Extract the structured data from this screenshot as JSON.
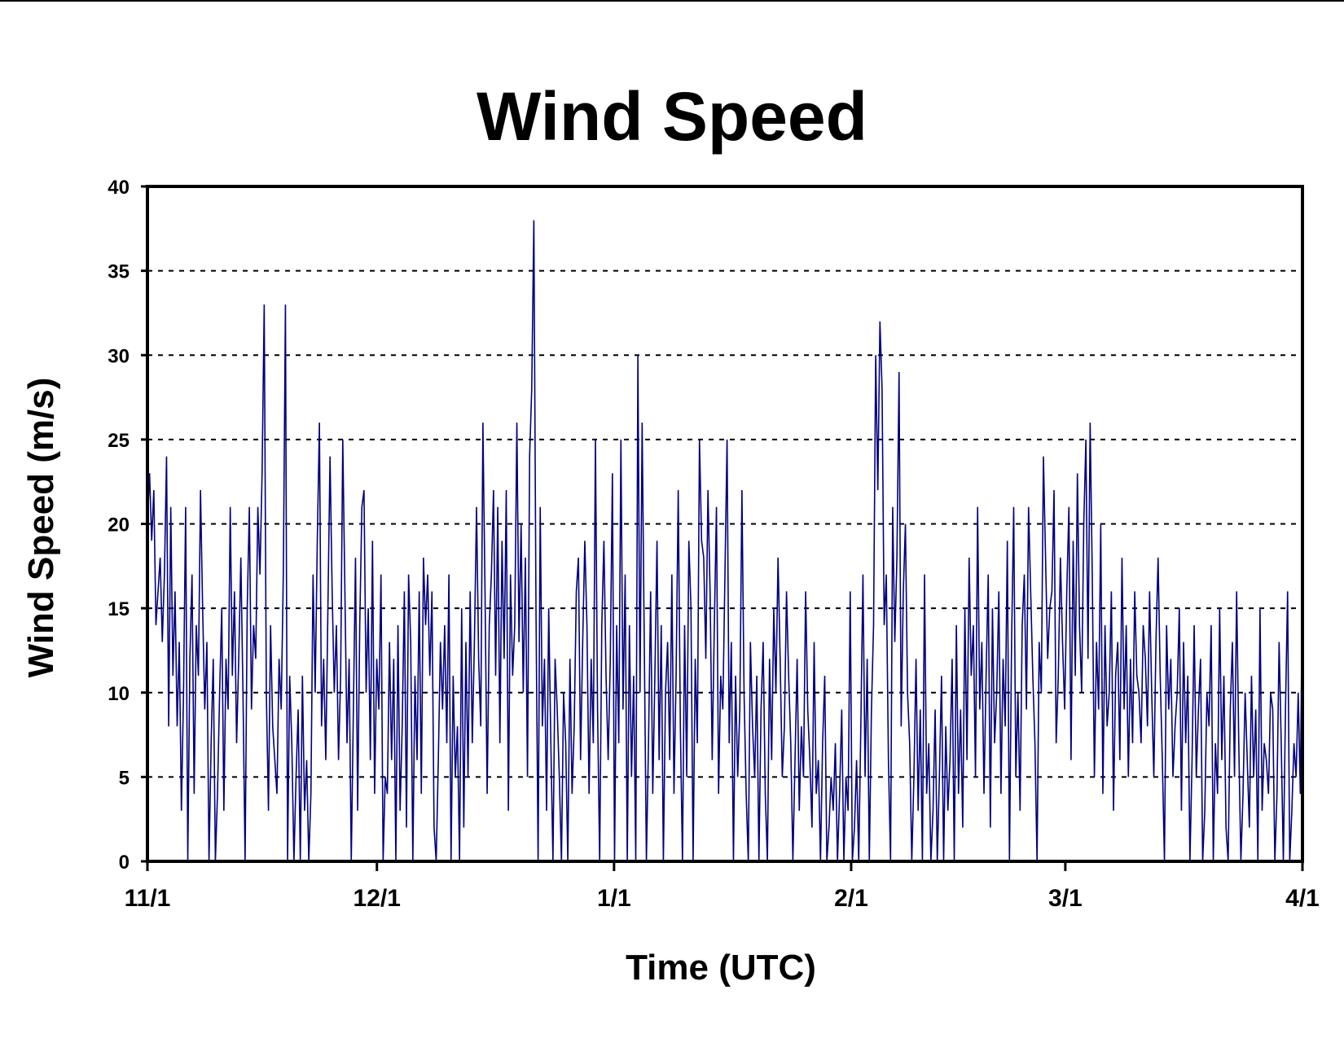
{
  "chart_data": {
    "type": "line",
    "title": "Wind Speed",
    "xlabel": "Time (UTC)",
    "ylabel": "Wind Speed (m/s)",
    "ylim": [
      0,
      40
    ],
    "yticks": [
      0,
      5,
      10,
      15,
      20,
      25,
      30,
      35,
      40
    ],
    "xlim": [
      "11/1",
      "4/1"
    ],
    "xticks": [
      "11/1",
      "12/1",
      "1/1",
      "2/1",
      "3/1",
      "4/1"
    ],
    "grid": "horizontal dashed",
    "legend": "none",
    "color": "#000080",
    "series": [
      {
        "x_start": "11/1",
        "x_end": "4/1",
        "values": [
          20,
          23,
          19,
          22,
          14,
          16,
          18,
          13,
          17,
          24,
          8,
          21,
          11,
          16,
          8,
          13,
          3,
          10,
          21,
          0,
          12,
          17,
          4,
          14,
          11,
          22,
          15,
          9,
          13,
          0,
          7,
          12,
          0,
          4,
          10,
          15,
          3,
          12,
          9,
          21,
          11,
          16,
          7,
          12,
          18,
          10,
          0,
          15,
          21,
          9,
          14,
          12,
          21,
          17,
          23,
          33,
          10,
          3,
          14,
          8,
          6,
          4,
          12,
          9,
          17,
          33,
          0,
          11,
          7,
          0,
          5,
          9,
          0,
          11,
          3,
          6,
          0,
          4,
          17,
          10,
          19,
          26,
          8,
          12,
          6,
          15,
          24,
          16,
          10,
          14,
          6,
          11,
          25,
          16,
          7,
          12,
          0,
          9,
          18,
          3,
          14,
          21,
          22,
          10,
          15,
          6,
          19,
          4,
          12,
          9,
          17,
          0,
          5,
          4,
          13,
          6,
          12,
          0,
          14,
          3,
          8,
          16,
          2,
          17,
          13,
          0,
          11,
          6,
          16,
          4,
          18,
          14,
          17,
          11,
          16,
          2,
          0,
          6,
          13,
          9,
          14,
          7,
          17,
          0,
          11,
          5,
          8,
          0,
          15,
          2,
          13,
          5,
          16,
          7,
          13,
          21,
          12,
          8,
          26,
          16,
          4,
          14,
          17,
          22,
          11,
          21,
          7,
          19,
          12,
          22,
          3,
          17,
          11,
          14,
          26,
          13,
          20,
          10,
          18,
          5,
          24,
          28,
          38,
          15,
          0,
          21,
          8,
          12,
          3,
          15,
          7,
          0,
          12,
          9,
          5,
          0,
          10,
          7,
          0,
          12,
          4,
          8,
          16,
          18,
          6,
          13,
          19,
          14,
          4,
          12,
          7,
          25,
          9,
          0,
          14,
          19,
          11,
          6,
          12,
          23,
          0,
          14,
          7,
          25,
          9,
          17,
          0,
          14,
          5,
          11,
          0,
          30,
          10,
          26,
          13,
          0,
          7,
          16,
          4,
          11,
          19,
          6,
          14,
          0,
          10,
          13,
          6,
          17,
          4,
          11,
          22,
          8,
          0,
          14,
          5,
          19,
          15,
          0,
          12,
          7,
          25,
          19,
          18,
          12,
          22,
          16,
          6,
          14,
          21,
          4,
          11,
          9,
          17,
          25,
          7,
          13,
          0,
          11,
          5,
          9,
          22,
          10,
          4,
          0,
          13,
          8,
          5,
          11,
          0,
          9,
          13,
          4,
          0,
          12,
          6,
          15,
          10,
          18,
          12,
          5,
          8,
          16,
          11,
          7,
          0,
          6,
          12,
          3,
          8,
          5,
          16,
          9,
          6,
          2,
          13,
          4,
          6,
          0,
          7,
          11,
          0,
          2,
          5,
          3,
          7,
          0,
          4,
          9,
          0,
          5,
          3,
          16,
          0,
          2,
          6,
          0,
          8,
          17,
          5,
          12,
          0,
          9,
          14,
          30,
          22,
          32,
          28,
          14,
          17,
          6,
          0,
          21,
          13,
          18,
          29,
          8,
          16,
          20,
          10,
          7,
          0,
          5,
          12,
          3,
          9,
          0,
          17,
          4,
          7,
          0,
          3,
          9,
          0,
          5,
          11,
          0,
          8,
          3,
          6,
          12,
          0,
          14,
          4,
          9,
          2,
          15,
          6,
          18,
          11,
          14,
          5,
          21,
          9,
          13,
          4,
          11,
          17,
          2,
          15,
          7,
          10,
          16,
          4,
          12,
          8,
          19,
          0,
          13,
          21,
          5,
          10,
          3,
          14,
          17,
          9,
          21,
          16,
          11,
          7,
          0,
          13,
          10,
          24,
          18,
          12,
          15,
          16,
          22,
          7,
          11,
          18,
          13,
          9,
          16,
          21,
          6,
          19,
          11,
          23,
          14,
          10,
          20,
          25,
          12,
          26,
          17,
          5,
          13,
          9,
          20,
          4,
          14,
          8,
          10,
          16,
          3,
          11,
          13,
          6,
          18,
          9,
          14,
          5,
          12,
          7,
          16,
          11,
          10,
          7,
          14,
          12,
          8,
          16,
          10,
          5,
          13,
          18,
          11,
          6,
          0,
          14,
          9,
          12,
          5,
          8,
          10,
          15,
          3,
          13,
          7,
          11,
          0,
          6,
          14,
          5,
          9,
          12,
          0,
          3,
          10,
          8,
          14,
          0,
          7,
          4,
          15,
          6,
          11,
          2,
          0,
          9,
          13,
          5,
          16,
          7,
          0,
          4,
          10,
          6,
          2,
          11,
          5,
          9,
          0,
          15,
          3,
          7,
          6,
          4,
          10,
          9,
          0,
          4,
          13,
          7,
          0,
          9,
          16,
          0,
          3,
          7,
          5,
          10,
          4,
          17
        ]
      }
    ]
  }
}
